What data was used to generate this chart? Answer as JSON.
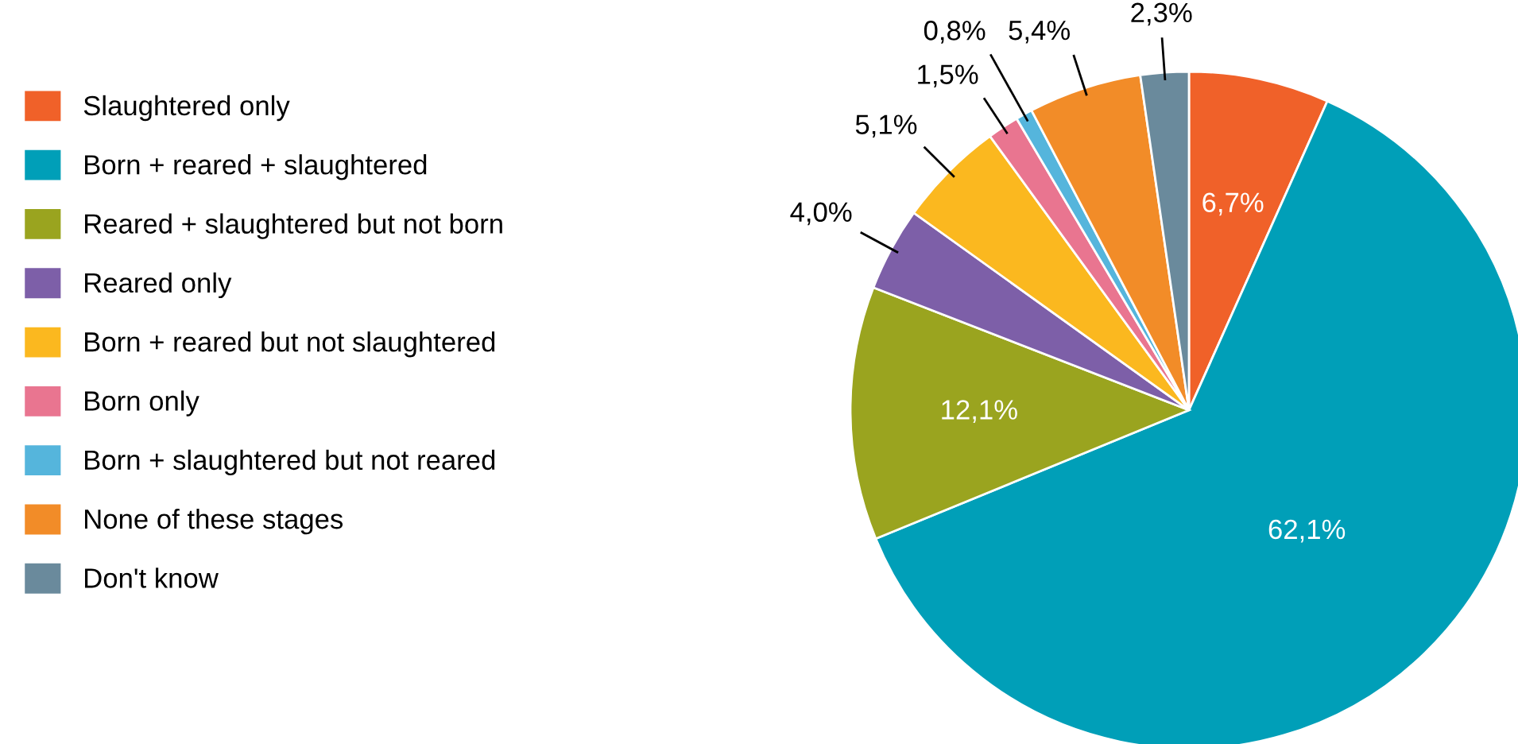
{
  "chart_data": {
    "type": "pie",
    "categories": [
      "Slaughtered only",
      "Born + reared + slaughtered",
      "Reared + slaughtered but not born",
      "Reared only",
      "Born + reared but not slaughtered",
      "Born only",
      "Born + slaughtered but not reared",
      "None of these stages",
      "Don't know"
    ],
    "values": [
      6.7,
      62.1,
      12.1,
      4.0,
      5.1,
      1.5,
      0.8,
      5.4,
      2.3
    ],
    "value_labels": [
      "6,7%",
      "62,1%",
      "12,1%",
      "4,0%",
      "5,1%",
      "1,5%",
      "0,8%",
      "5,4%",
      "2,3%"
    ],
    "colors": [
      "#f06129",
      "#009fb8",
      "#9aa41f",
      "#7d5fa8",
      "#fbb81f",
      "#e97590",
      "#55b5dc",
      "#f28c28",
      "#6a8a9c"
    ],
    "legend": "left"
  }
}
